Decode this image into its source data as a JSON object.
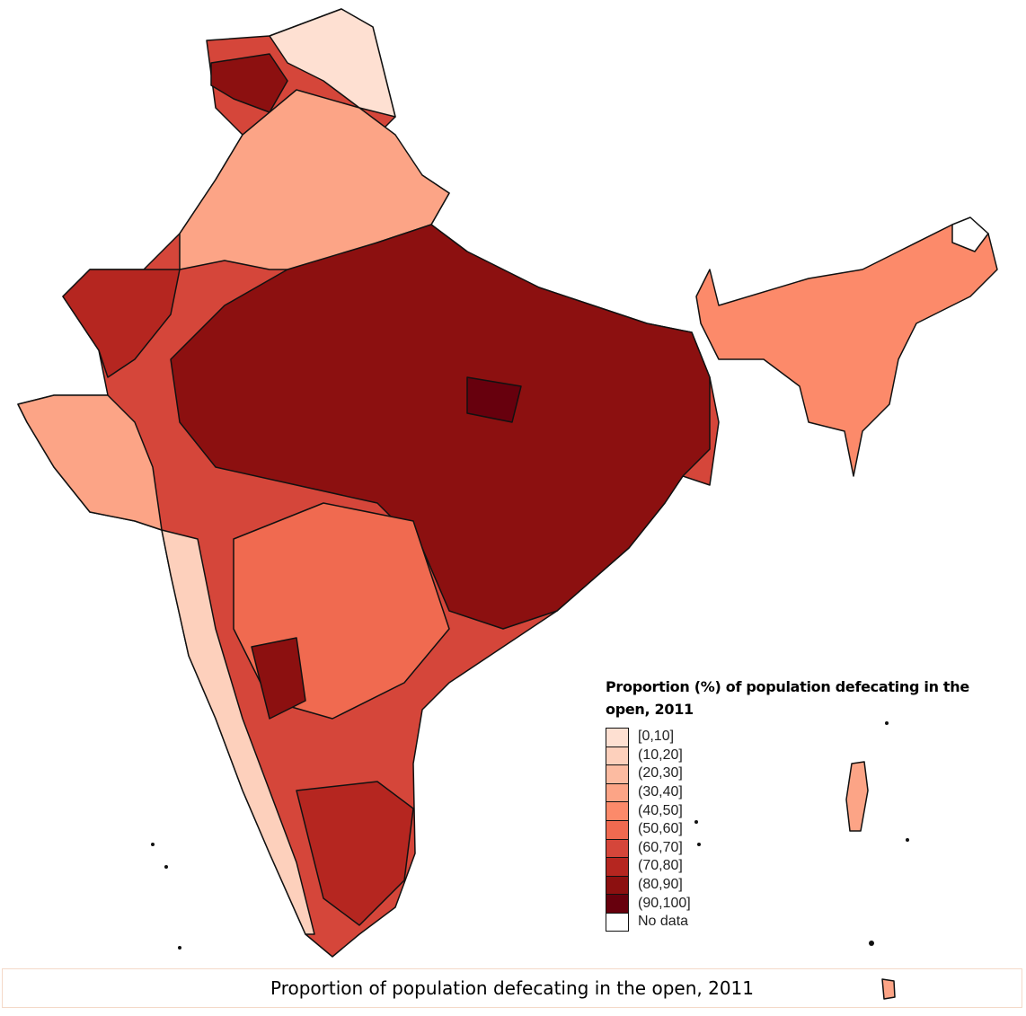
{
  "legend": {
    "title": "Proportion  (%) of population defecating in the open, 2011",
    "items": [
      {
        "label": "[0,10]",
        "color": "#fee0d2"
      },
      {
        "label": "(10,20]",
        "color": "#fdd0bc"
      },
      {
        "label": "(20,30]",
        "color": "#fcbba1"
      },
      {
        "label": "(30,40]",
        "color": "#fca486"
      },
      {
        "label": "(40,50]",
        "color": "#fc8a6a"
      },
      {
        "label": "(50,60]",
        "color": "#f06a50"
      },
      {
        "label": "(60,70]",
        "color": "#d5463a"
      },
      {
        "label": "(70,80]",
        "color": "#b52620"
      },
      {
        "label": "(80,90]",
        "color": "#8c1010"
      },
      {
        "label": "(90,100]",
        "color": "#67000d"
      },
      {
        "label": "No data",
        "color": "#ffffff"
      }
    ]
  },
  "caption": "Proportion of population defecating in the open, 2011"
}
